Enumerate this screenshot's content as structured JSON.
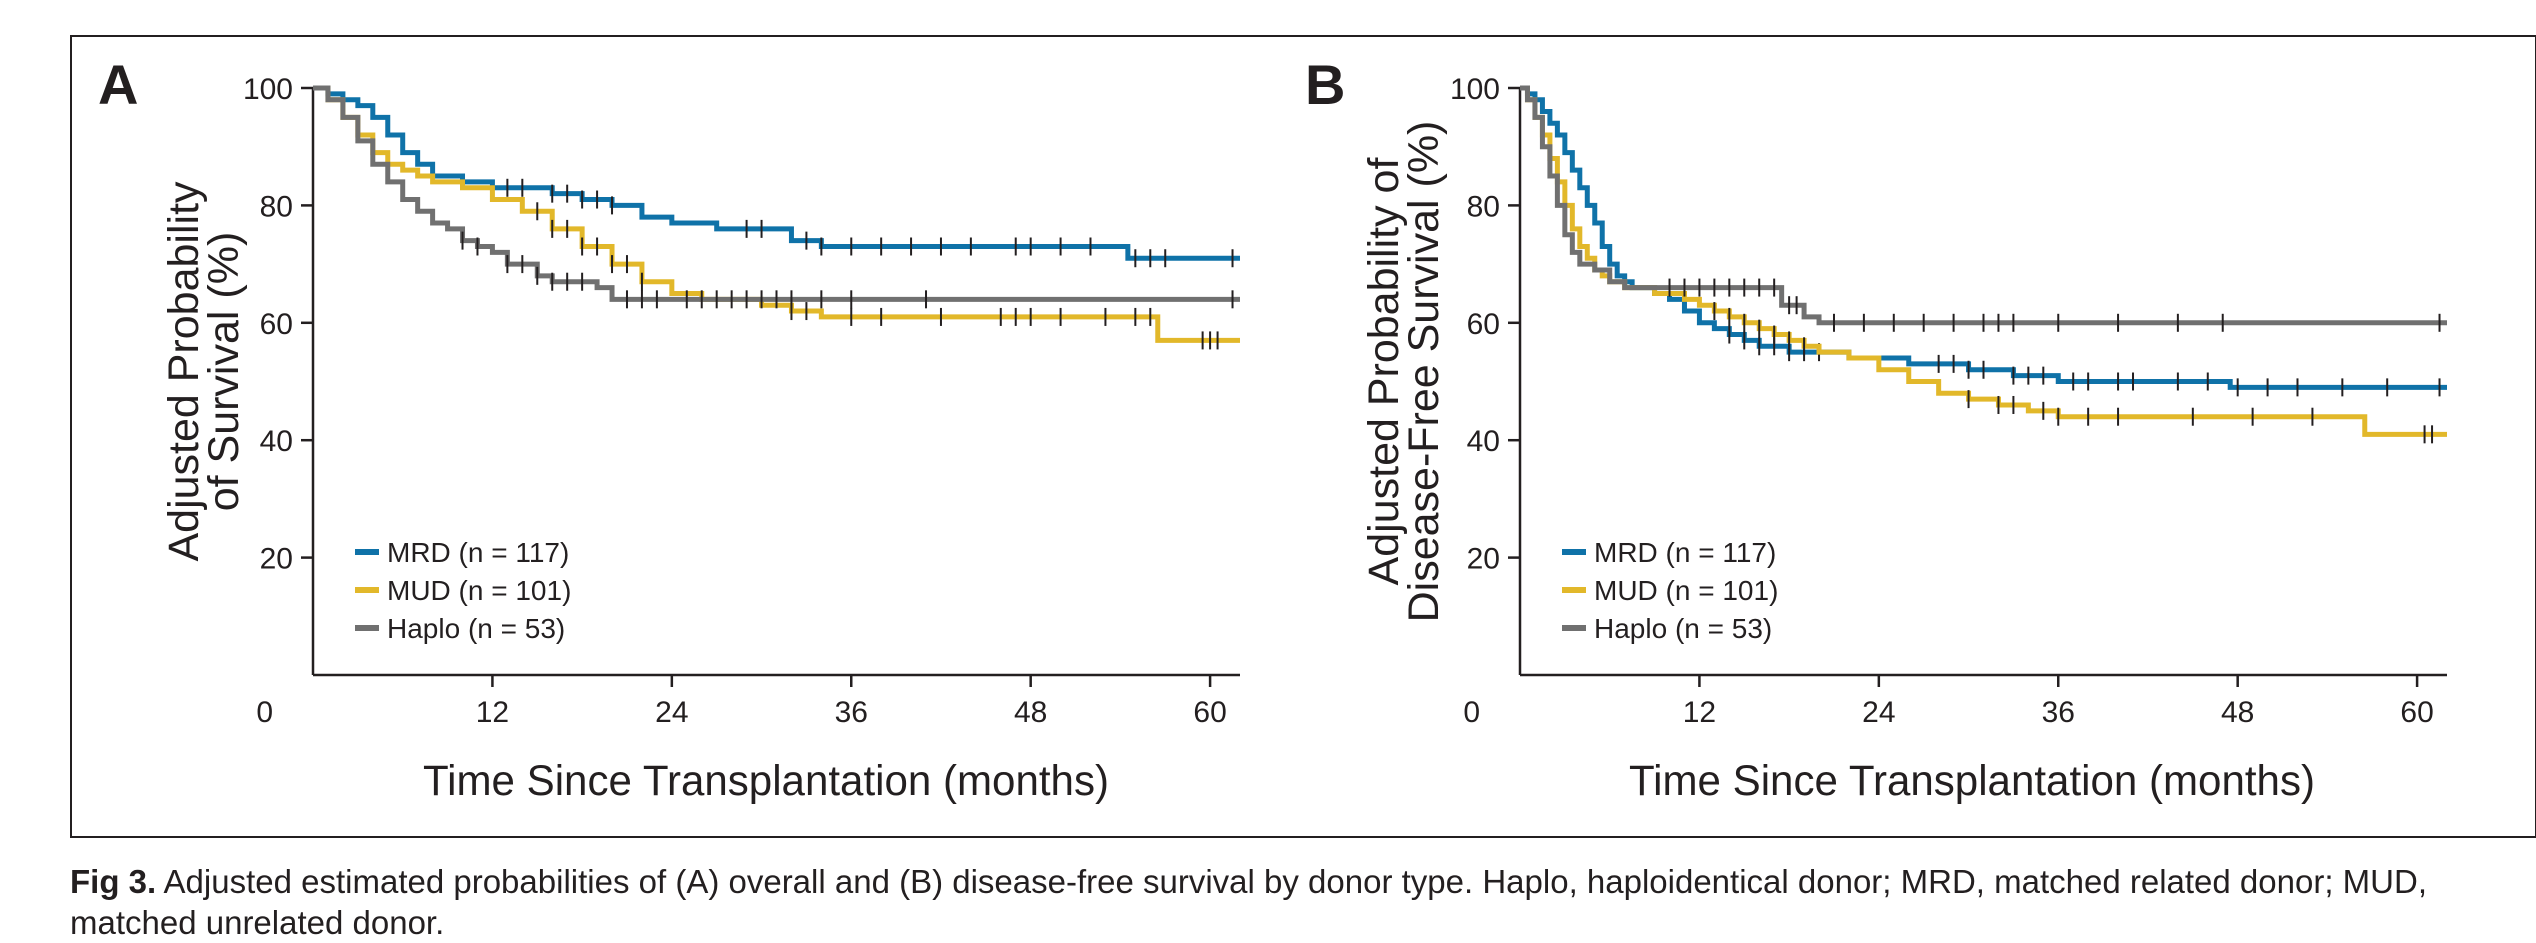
{
  "caption": {
    "label": "Fig 3.",
    "text": " Adjusted estimated probabilities of (A) overall and (B) disease-free survival by donor type. Haplo, haploidentical donor; MRD, matched related donor; MUD, matched unrelated donor."
  },
  "colors": {
    "MRD": "#0f72a8",
    "MUD": "#e2b82a",
    "Haplo": "#707070",
    "axis": "#231f20"
  },
  "chart_data": [
    {
      "type": "line",
      "panel": "A",
      "xlabel": "Time Since Transplantation (months)",
      "ylabel": [
        "Adjusted Probability",
        "of Survival (%)"
      ],
      "xlim": [
        0,
        62
      ],
      "ylim": [
        0,
        100
      ],
      "xticks": [
        12,
        24,
        36,
        48,
        60
      ],
      "yticks": [
        20,
        40,
        60,
        80,
        100
      ],
      "origin_label": "0",
      "legend_position": "bottom-left",
      "series": [
        {
          "name": "MRD (n = 117)",
          "key": "MRD",
          "x": [
            0,
            1,
            2,
            3,
            4,
            5,
            6,
            7,
            8,
            10,
            12,
            14,
            16,
            18,
            20,
            22,
            24,
            27,
            30,
            32,
            34,
            36,
            40,
            44,
            48,
            52,
            54.5,
            58,
            62
          ],
          "y": [
            100,
            99,
            98,
            97,
            95,
            92,
            89,
            87,
            85,
            84,
            83,
            83,
            82,
            81,
            80,
            78,
            77,
            76,
            76,
            74,
            73,
            73,
            73,
            73,
            73,
            73,
            71,
            71,
            71
          ],
          "censor": [
            13,
            14,
            16,
            17,
            18,
            19,
            20,
            29,
            30,
            33,
            34,
            36,
            38,
            40,
            42,
            44,
            47,
            48,
            50,
            52,
            55,
            56,
            57,
            61.5
          ]
        },
        {
          "name": "MUD (n = 101)",
          "key": "MUD",
          "x": [
            0,
            1,
            2,
            3,
            4,
            5,
            6,
            7,
            8,
            10,
            11,
            12,
            14,
            16,
            18,
            20,
            22,
            24,
            26,
            30,
            32,
            34,
            36,
            40,
            48,
            52,
            56.5,
            62
          ],
          "y": [
            100,
            98,
            95,
            92,
            89,
            87,
            86,
            85,
            84,
            83,
            83,
            81,
            79,
            76,
            73,
            70,
            67,
            65,
            64,
            63,
            62,
            61,
            61,
            61,
            61,
            61,
            57,
            57
          ],
          "censor": [
            15,
            16,
            17,
            18,
            19,
            20,
            21,
            22,
            32,
            33,
            36,
            38,
            42,
            46,
            47,
            48,
            50,
            53,
            55,
            56,
            59.5,
            60,
            60.5
          ]
        },
        {
          "name": "Haplo (n = 53)",
          "key": "Haplo",
          "x": [
            0,
            1,
            2,
            3,
            4,
            5,
            6,
            7,
            8,
            9,
            10,
            11,
            12,
            13,
            14,
            15,
            16,
            18,
            19,
            20,
            22,
            24,
            62
          ],
          "y": [
            100,
            98,
            95,
            91,
            87,
            84,
            81,
            79,
            77,
            76,
            74,
            73,
            72,
            70,
            70,
            68,
            67,
            67,
            66,
            64,
            64,
            64,
            64
          ],
          "censor": [
            10,
            11,
            13,
            14,
            15,
            16,
            17,
            18,
            21,
            22,
            23,
            25,
            26,
            27,
            28,
            29,
            30,
            31,
            32,
            34,
            36,
            41,
            61.5
          ]
        }
      ],
      "legend": [
        "MRD (n = 117)",
        "MUD (n = 101)",
        "Haplo (n = 53)"
      ]
    },
    {
      "type": "line",
      "panel": "B",
      "xlabel": "Time Since Transplantation (months)",
      "ylabel": [
        "Adjusted Probability of",
        "Disease-Free Survival (%)"
      ],
      "xlim": [
        0,
        62
      ],
      "ylim": [
        0,
        100
      ],
      "xticks": [
        12,
        24,
        36,
        48,
        60
      ],
      "yticks": [
        20,
        40,
        60,
        80,
        100
      ],
      "origin_label": "0",
      "legend_position": "bottom-left",
      "series": [
        {
          "name": "MRD (n = 117)",
          "key": "MRD",
          "x": [
            0,
            0.5,
            1,
            1.5,
            2,
            2.5,
            3,
            3.5,
            4,
            4.5,
            5,
            5.5,
            6,
            6.5,
            7,
            7.5,
            8,
            9,
            10,
            11,
            12,
            13,
            14,
            15,
            16,
            17,
            18,
            19,
            20,
            22,
            24,
            26,
            28,
            30,
            33,
            36,
            40,
            47.5,
            52,
            62
          ],
          "y": [
            100,
            99,
            98,
            96,
            94,
            92,
            89,
            86,
            83,
            80,
            77,
            73,
            70,
            68,
            67,
            66,
            66,
            65,
            64,
            62,
            60,
            59,
            58,
            57,
            56,
            56,
            55,
            55,
            55,
            54,
            54,
            53,
            53,
            52,
            51,
            50,
            50,
            49,
            49,
            49
          ],
          "censor": [
            14,
            15,
            16,
            17,
            18,
            19,
            20,
            28,
            29,
            30,
            31,
            33,
            34,
            35,
            37,
            38,
            40,
            41,
            44,
            46,
            48,
            50,
            52,
            55,
            58,
            61.5
          ]
        },
        {
          "name": "MUD (n = 101)",
          "key": "MUD",
          "x": [
            0,
            0.5,
            1,
            1.5,
            2,
            2.5,
            3,
            3.5,
            4,
            4.5,
            5,
            5.5,
            6,
            7,
            8,
            9,
            10,
            11,
            12,
            13,
            14,
            15,
            16,
            17,
            18,
            19,
            20,
            22,
            24,
            26,
            28,
            30,
            32,
            34,
            36,
            40,
            48,
            52,
            56.5,
            62
          ],
          "y": [
            100,
            98,
            95,
            92,
            88,
            84,
            80,
            76,
            73,
            71,
            69,
            68,
            67,
            66,
            66,
            65,
            65,
            64,
            63,
            62,
            61,
            60,
            59,
            58,
            57,
            56,
            55,
            54,
            52,
            50,
            48,
            47,
            46,
            45,
            44,
            44,
            44,
            44,
            41,
            41
          ],
          "censor": [
            13,
            14,
            15,
            16,
            17,
            18,
            19,
            30,
            32,
            33,
            35,
            36,
            38,
            40,
            45,
            49,
            53,
            60.5,
            61
          ]
        },
        {
          "name": "Haplo (n = 53)",
          "key": "Haplo",
          "x": [
            0,
            0.5,
            1,
            1.5,
            2,
            2.5,
            3,
            3.5,
            4,
            5,
            6,
            7,
            8,
            9,
            12,
            17.5,
            19,
            20,
            22,
            62
          ],
          "y": [
            100,
            98,
            95,
            90,
            85,
            80,
            75,
            72,
            70,
            69,
            67,
            66,
            66,
            66,
            66,
            63,
            61,
            60,
            60,
            60
          ],
          "censor": [
            10,
            11,
            12,
            13,
            14,
            15,
            16,
            17,
            18,
            18.5,
            21,
            23,
            25,
            27,
            29,
            31,
            32,
            33,
            36,
            40,
            44,
            47,
            61.5
          ]
        }
      ],
      "legend": [
        "MRD (n = 117)",
        "MUD (n = 101)",
        "Haplo (n = 53)"
      ]
    }
  ]
}
